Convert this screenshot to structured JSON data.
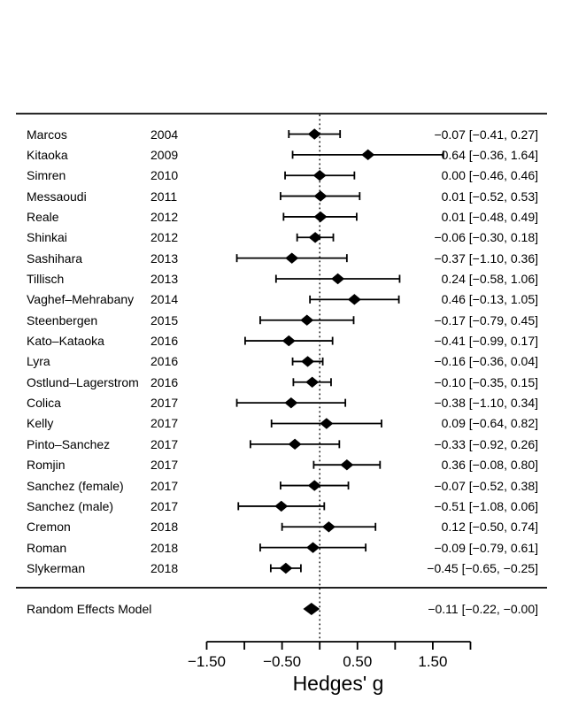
{
  "chart_data": {
    "type": "forest",
    "xlabel": "Hedges' g",
    "xlim": [
      -1.5,
      2.0
    ],
    "zero_line": 0,
    "legend": "none",
    "grid": false,
    "x_ticks": [
      {
        "v": -1.5,
        "label": "−1.50"
      },
      {
        "v": -1.0,
        "label": ""
      },
      {
        "v": -0.5,
        "label": "−0.50"
      },
      {
        "v": 0.0,
        "label": ""
      },
      {
        "v": 0.5,
        "label": "0.50"
      },
      {
        "v": 1.0,
        "label": ""
      },
      {
        "v": 1.5,
        "label": "1.50"
      },
      {
        "v": 2.0,
        "label": ""
      }
    ],
    "studies": [
      {
        "name": "Marcos",
        "year": "2004",
        "g": -0.07,
        "lo": -0.41,
        "hi": 0.27,
        "label": "−0.07 [−0.41,  0.27]"
      },
      {
        "name": "Kitaoka",
        "year": "2009",
        "g": 0.64,
        "lo": -0.36,
        "hi": 1.64,
        "label": "0.64 [−0.36,  1.64]"
      },
      {
        "name": "Simren",
        "year": "2010",
        "g": 0.0,
        "lo": -0.46,
        "hi": 0.46,
        "label": "0.00 [−0.46,  0.46]"
      },
      {
        "name": "Messaoudi",
        "year": "2011",
        "g": 0.01,
        "lo": -0.52,
        "hi": 0.53,
        "label": "0.01 [−0.52,  0.53]"
      },
      {
        "name": "Reale",
        "year": "2012",
        "g": 0.01,
        "lo": -0.48,
        "hi": 0.49,
        "label": "0.01 [−0.48,  0.49]"
      },
      {
        "name": "Shinkai",
        "year": "2012",
        "g": -0.06,
        "lo": -0.3,
        "hi": 0.18,
        "label": "−0.06 [−0.30,  0.18]"
      },
      {
        "name": "Sashihara",
        "year": "2013",
        "g": -0.37,
        "lo": -1.1,
        "hi": 0.36,
        "label": "−0.37 [−1.10,  0.36]"
      },
      {
        "name": "Tillisch",
        "year": "2013",
        "g": 0.24,
        "lo": -0.58,
        "hi": 1.06,
        "label": "0.24 [−0.58,  1.06]"
      },
      {
        "name": "Vaghef–Mehrabany",
        "year": "2014",
        "g": 0.46,
        "lo": -0.13,
        "hi": 1.05,
        "label": "0.46 [−0.13,  1.05]"
      },
      {
        "name": "Steenbergen",
        "year": "2015",
        "g": -0.17,
        "lo": -0.79,
        "hi": 0.45,
        "label": "−0.17 [−0.79,  0.45]"
      },
      {
        "name": "Kato–Kataoka",
        "year": "2016",
        "g": -0.41,
        "lo": -0.99,
        "hi": 0.17,
        "label": "−0.41 [−0.99,  0.17]"
      },
      {
        "name": "Lyra",
        "year": "2016",
        "g": -0.16,
        "lo": -0.36,
        "hi": 0.04,
        "label": "−0.16 [−0.36,  0.04]"
      },
      {
        "name": "Ostlund–Lagerstrom",
        "year": "2016",
        "g": -0.1,
        "lo": -0.35,
        "hi": 0.15,
        "label": "−0.10 [−0.35,  0.15]"
      },
      {
        "name": "Colica",
        "year": "2017",
        "g": -0.38,
        "lo": -1.1,
        "hi": 0.34,
        "label": "−0.38 [−1.10,  0.34]"
      },
      {
        "name": "Kelly",
        "year": "2017",
        "g": 0.09,
        "lo": -0.64,
        "hi": 0.82,
        "label": "0.09 [−0.64,  0.82]"
      },
      {
        "name": "Pinto–Sanchez",
        "year": "2017",
        "g": -0.33,
        "lo": -0.92,
        "hi": 0.26,
        "label": "−0.33 [−0.92,  0.26]"
      },
      {
        "name": "Romjin",
        "year": "2017",
        "g": 0.36,
        "lo": -0.08,
        "hi": 0.8,
        "label": "0.36 [−0.08,  0.80]"
      },
      {
        "name": "Sanchez (female)",
        "year": "2017",
        "g": -0.07,
        "lo": -0.52,
        "hi": 0.38,
        "label": "−0.07 [−0.52,  0.38]"
      },
      {
        "name": "Sanchez (male)",
        "year": "2017",
        "g": -0.51,
        "lo": -1.08,
        "hi": 0.06,
        "label": "−0.51 [−1.08,  0.06]"
      },
      {
        "name": "Cremon",
        "year": "2018",
        "g": 0.12,
        "lo": -0.5,
        "hi": 0.74,
        "label": "0.12 [−0.50,  0.74]"
      },
      {
        "name": "Roman",
        "year": "2018",
        "g": -0.09,
        "lo": -0.79,
        "hi": 0.61,
        "label": "−0.09 [−0.79,  0.61]"
      },
      {
        "name": "Slykerman",
        "year": "2018",
        "g": -0.45,
        "lo": -0.65,
        "hi": -0.25,
        "label": "−0.45 [−0.65, −0.25]"
      }
    ],
    "summary": {
      "name": "Random Effects Model",
      "g": -0.11,
      "lo": -0.22,
      "hi": 0.0,
      "label": "−0.11 [−0.22, −0.00]"
    },
    "colors": {
      "foreground": "#000000",
      "background": "#ffffff"
    }
  }
}
